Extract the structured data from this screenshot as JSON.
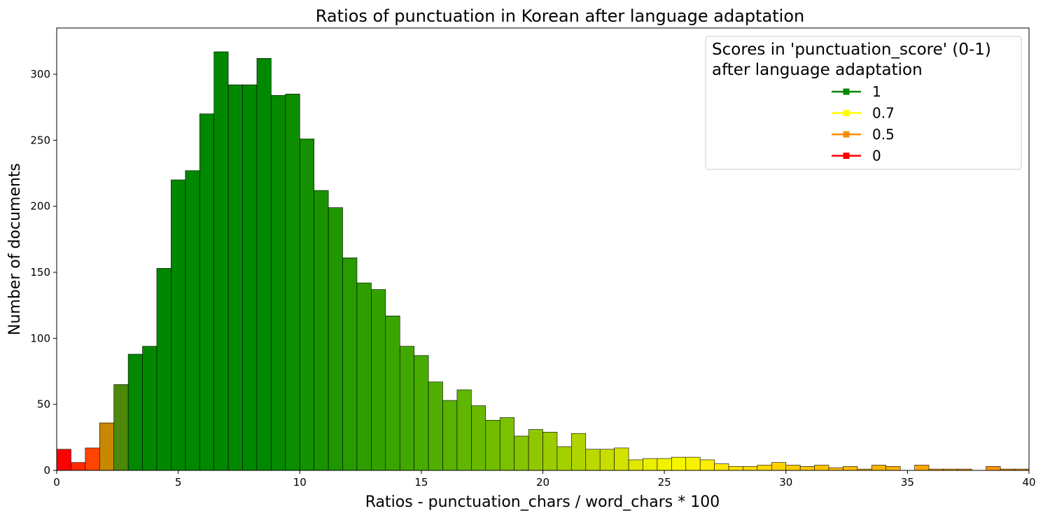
{
  "chart_data": {
    "type": "bar",
    "title": "Ratios of punctuation in Korean after language adaptation",
    "xlabel": "Ratios - punctuation_chars / word_chars * 100",
    "ylabel": "Number of documents",
    "xlim": [
      0,
      40
    ],
    "ylim": [
      0,
      335
    ],
    "xticks": [
      0,
      5,
      10,
      15,
      20,
      25,
      30,
      35,
      40
    ],
    "yticks": [
      0,
      50,
      100,
      150,
      200,
      250,
      300
    ],
    "bin_width": 0.5882,
    "bins": [
      {
        "x0": 0.0,
        "value": 16,
        "color": "#ff0000"
      },
      {
        "x0": 0.5882,
        "value": 6,
        "color": "#ff2a00"
      },
      {
        "x0": 1.1765,
        "value": 17,
        "color": "#ff4400"
      },
      {
        "x0": 1.7647,
        "value": 36,
        "color": "#c88800"
      },
      {
        "x0": 2.3529,
        "value": 65,
        "color": "#4d880a"
      },
      {
        "x0": 2.9412,
        "value": 88,
        "color": "#008800"
      },
      {
        "x0": 3.5294,
        "value": 94,
        "color": "#008800"
      },
      {
        "x0": 4.1176,
        "value": 153,
        "color": "#008800"
      },
      {
        "x0": 4.7059,
        "value": 220,
        "color": "#008800"
      },
      {
        "x0": 5.2941,
        "value": 227,
        "color": "#008800"
      },
      {
        "x0": 5.8824,
        "value": 270,
        "color": "#008800"
      },
      {
        "x0": 6.4706,
        "value": 317,
        "color": "#008800"
      },
      {
        "x0": 7.0588,
        "value": 292,
        "color": "#008800"
      },
      {
        "x0": 7.6471,
        "value": 292,
        "color": "#008800"
      },
      {
        "x0": 8.2353,
        "value": 312,
        "color": "#008800"
      },
      {
        "x0": 8.8235,
        "value": 284,
        "color": "#068a00"
      },
      {
        "x0": 9.4118,
        "value": 285,
        "color": "#0c8e00"
      },
      {
        "x0": 10.0,
        "value": 251,
        "color": "#139100"
      },
      {
        "x0": 10.5882,
        "value": 212,
        "color": "#199400"
      },
      {
        "x0": 11.1765,
        "value": 199,
        "color": "#1f9800"
      },
      {
        "x0": 11.7647,
        "value": 161,
        "color": "#279b00"
      },
      {
        "x0": 12.3529,
        "value": 142,
        "color": "#2d9e00"
      },
      {
        "x0": 12.9412,
        "value": 137,
        "color": "#33a100"
      },
      {
        "x0": 13.5294,
        "value": 117,
        "color": "#3aa500"
      },
      {
        "x0": 14.1176,
        "value": 94,
        "color": "#41a800"
      },
      {
        "x0": 14.7059,
        "value": 87,
        "color": "#48ab00"
      },
      {
        "x0": 15.2941,
        "value": 67,
        "color": "#50af00"
      },
      {
        "x0": 15.8824,
        "value": 53,
        "color": "#58b200"
      },
      {
        "x0": 16.4706,
        "value": 61,
        "color": "#60b600"
      },
      {
        "x0": 17.0588,
        "value": 49,
        "color": "#69b900"
      },
      {
        "x0": 17.6471,
        "value": 38,
        "color": "#72bd00"
      },
      {
        "x0": 18.2353,
        "value": 40,
        "color": "#7bc100"
      },
      {
        "x0": 18.8235,
        "value": 26,
        "color": "#85c400"
      },
      {
        "x0": 19.4118,
        "value": 31,
        "color": "#8fc800"
      },
      {
        "x0": 20.0,
        "value": 29,
        "color": "#9acc00"
      },
      {
        "x0": 20.5882,
        "value": 18,
        "color": "#a5d000"
      },
      {
        "x0": 21.1765,
        "value": 28,
        "color": "#b0d400"
      },
      {
        "x0": 21.7647,
        "value": 16,
        "color": "#bcd900"
      },
      {
        "x0": 22.3529,
        "value": 16,
        "color": "#c8dd00"
      },
      {
        "x0": 22.9412,
        "value": 17,
        "color": "#d4e200"
      },
      {
        "x0": 23.5294,
        "value": 8,
        "color": "#e0e800"
      },
      {
        "x0": 24.1176,
        "value": 9,
        "color": "#eaee00"
      },
      {
        "x0": 24.7059,
        "value": 9,
        "color": "#f2f200"
      },
      {
        "x0": 25.2941,
        "value": 10,
        "color": "#f5f500"
      },
      {
        "x0": 25.8824,
        "value": 10,
        "color": "#f8f200"
      },
      {
        "x0": 26.4706,
        "value": 8,
        "color": "#fbee00"
      },
      {
        "x0": 27.0588,
        "value": 5,
        "color": "#ffe900"
      },
      {
        "x0": 27.6471,
        "value": 3,
        "color": "#ffe300"
      },
      {
        "x0": 28.2353,
        "value": 3,
        "color": "#ffdd00"
      },
      {
        "x0": 28.8235,
        "value": 4,
        "color": "#ffd800"
      },
      {
        "x0": 29.4118,
        "value": 6,
        "color": "#ffd200"
      },
      {
        "x0": 30.0,
        "value": 4,
        "color": "#ffcc00"
      },
      {
        "x0": 30.5882,
        "value": 3,
        "color": "#ffc800"
      },
      {
        "x0": 31.1765,
        "value": 4,
        "color": "#ffc400"
      },
      {
        "x0": 31.7647,
        "value": 2,
        "color": "#ffc000"
      },
      {
        "x0": 32.3529,
        "value": 3,
        "color": "#ffbc00"
      },
      {
        "x0": 32.9412,
        "value": 1,
        "color": "#ffb800"
      },
      {
        "x0": 33.5294,
        "value": 4,
        "color": "#ffb400"
      },
      {
        "x0": 34.1176,
        "value": 3,
        "color": "#ffb000"
      },
      {
        "x0": 34.7059,
        "value": 0,
        "color": "#ffac00"
      },
      {
        "x0": 35.2941,
        "value": 4,
        "color": "#ffa800"
      },
      {
        "x0": 35.8824,
        "value": 1,
        "color": "#ffa400"
      },
      {
        "x0": 36.4706,
        "value": 1,
        "color": "#ffa000"
      },
      {
        "x0": 37.0588,
        "value": 1,
        "color": "#ff9c00"
      },
      {
        "x0": 37.6471,
        "value": 0,
        "color": "#ff9800"
      },
      {
        "x0": 38.2353,
        "value": 3,
        "color": "#ff9400"
      },
      {
        "x0": 38.8235,
        "value": 1,
        "color": "#ff9000"
      },
      {
        "x0": 39.4118,
        "value": 1,
        "color": "#ff8c00"
      }
    ],
    "legend": {
      "title_line1": "Scores in 'punctuation_score' (0-1)",
      "title_line2": "after language adaptation",
      "placement": "top-right",
      "entries": [
        {
          "label": "1",
          "color": "#008800"
        },
        {
          "label": "0.7",
          "color": "#ffff00"
        },
        {
          "label": "0.5",
          "color": "#ff8c00"
        },
        {
          "label": "0",
          "color": "#ff0000"
        }
      ]
    }
  }
}
